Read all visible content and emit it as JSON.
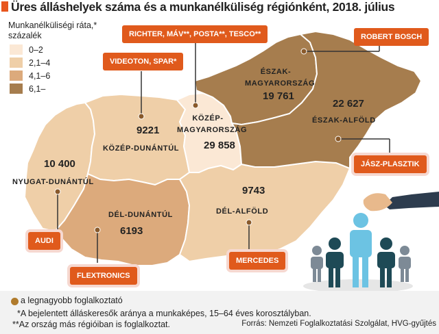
{
  "title": "Üres álláshelyek száma és a munkanélküliség régiónként, 2018. július",
  "legend": {
    "title_line1": "Munkanélküliségi ráta,*",
    "title_line2": "százalék",
    "items": [
      {
        "label": "0–2",
        "color": "#fbe8d5"
      },
      {
        "label": "2,1–4",
        "color": "#efcfa8"
      },
      {
        "label": "4,1–6",
        "color": "#dcaa7c"
      },
      {
        "label": "6,1–",
        "color": "#a67d4e"
      }
    ]
  },
  "regions": [
    {
      "name_line1": "ÉSZAK-",
      "name_line2": "MAGYARORSZÁG",
      "vacancies": "19 761",
      "color": "#a67d4e"
    },
    {
      "name_line1": "ÉSZAK-ALFÖLD",
      "name_line2": "",
      "vacancies": "22 627",
      "color": "#a67d4e"
    },
    {
      "name_line1": "KÖZÉP-",
      "name_line2": "MAGYARORSZÁG",
      "vacancies": "29 858",
      "color": "#fbe8d5"
    },
    {
      "name_line1": "KÖZÉP-DUNÁNTÚL",
      "name_line2": "",
      "vacancies": "9221",
      "color": "#efcfa8"
    },
    {
      "name_line1": "NYUGAT-DUNÁNTÚL",
      "name_line2": "",
      "vacancies": "10 400",
      "color": "#efcfa8"
    },
    {
      "name_line1": "DÉL-DUNÁNTÚL",
      "name_line2": "",
      "vacancies": "6193",
      "color": "#dcaa7c"
    },
    {
      "name_line1": "DÉL-ALFÖLD",
      "name_line2": "",
      "vacancies": "9743",
      "color": "#efcfa8"
    }
  ],
  "employers": {
    "richter": "RICHTER, MÁV**, POSTA**, TESCO**",
    "bosch": "ROBERT BOSCH",
    "videoton": "VIDEOTON, SPAR*",
    "jasz": "JÁSZ-PLASZTIK",
    "audi": "AUDI",
    "flextronics": "FLEXTRONICS",
    "mercedes": "MERCEDES"
  },
  "footer": {
    "largest_employer": "a legnagyobb  foglalkoztató",
    "footnote1": "*A bejelentett álláskeresők aránya a munkaképes, 15–64 éves korosztályban.",
    "footnote2": "**Az ország más régióiban is foglalkoztat.",
    "source": "Forrás: Nemzeti Foglalkoztatási Szolgálat, HVG-gyűjtés"
  },
  "colors": {
    "accent": "#e05a1c",
    "employer_dot": "#8a5a2b"
  }
}
